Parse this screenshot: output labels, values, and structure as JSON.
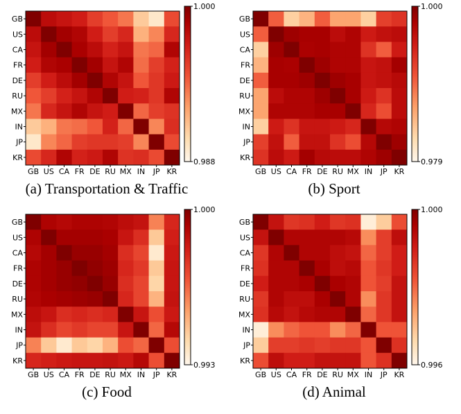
{
  "chart_data": [
    {
      "type": "heatmap",
      "caption": "(a) Transportation & Traffic",
      "labels": [
        "GB",
        "US",
        "CA",
        "FR",
        "DE",
        "RU",
        "MX",
        "IN",
        "JP",
        "KR"
      ],
      "colorbar": {
        "max": 1.0,
        "min": 0.988,
        "max_label": "1.000",
        "min_label": "0.988"
      },
      "values": [
        [
          1.0,
          0.998,
          0.9975,
          0.997,
          0.9955,
          0.9945,
          0.9935,
          0.9905,
          0.989,
          0.995
        ],
        [
          0.998,
          1.0,
          0.999,
          0.9985,
          0.997,
          0.9955,
          0.9965,
          0.9915,
          0.993,
          0.9965
        ],
        [
          0.9975,
          0.999,
          1.0,
          0.9988,
          0.998,
          0.9968,
          0.9975,
          0.9935,
          0.994,
          0.9985
        ],
        [
          0.997,
          0.9985,
          0.9988,
          1.0,
          0.999,
          0.9975,
          0.9985,
          0.9938,
          0.9955,
          0.9968
        ],
        [
          0.9955,
          0.997,
          0.998,
          0.999,
          1.0,
          0.9985,
          0.9975,
          0.9945,
          0.9958,
          0.9972
        ],
        [
          0.9945,
          0.9955,
          0.9968,
          0.9975,
          0.9985,
          1.0,
          0.997,
          0.9968,
          0.9958,
          0.9985
        ],
        [
          0.9935,
          0.9965,
          0.9975,
          0.9985,
          0.9975,
          0.997,
          1.0,
          0.994,
          0.9955,
          0.996
        ],
        [
          0.9905,
          0.9915,
          0.9935,
          0.9938,
          0.9945,
          0.9968,
          0.994,
          1.0,
          0.993,
          0.9962
        ],
        [
          0.989,
          0.993,
          0.994,
          0.9955,
          0.9958,
          0.9958,
          0.9955,
          0.993,
          1.0,
          0.995
        ],
        [
          0.995,
          0.9965,
          0.9985,
          0.9968,
          0.9972,
          0.9985,
          0.996,
          0.9962,
          0.995,
          1.0
        ]
      ]
    },
    {
      "type": "heatmap",
      "caption": "(b) Sport",
      "labels": [
        "GB",
        "US",
        "CA",
        "FR",
        "DE",
        "RU",
        "MX",
        "IN",
        "JP",
        "KR"
      ],
      "colorbar": {
        "max": 1.0,
        "min": 0.979,
        "max_label": "1.000",
        "min_label": "0.979"
      },
      "values": [
        [
          1.0,
          0.99,
          0.983,
          0.985,
          0.99,
          0.986,
          0.986,
          0.983,
          0.992,
          0.993
        ],
        [
          0.99,
          1.0,
          0.9985,
          0.998,
          0.998,
          0.9965,
          0.9975,
          0.995,
          0.996,
          0.9965
        ],
        [
          0.983,
          0.9985,
          1.0,
          0.9978,
          0.998,
          0.9975,
          0.9975,
          0.993,
          0.99,
          0.995
        ],
        [
          0.985,
          0.998,
          0.9978,
          1.0,
          0.9985,
          0.9975,
          0.9975,
          0.9955,
          0.996,
          0.9982
        ],
        [
          0.99,
          0.998,
          0.998,
          0.9985,
          1.0,
          0.9985,
          0.998,
          0.9955,
          0.996,
          0.9968
        ],
        [
          0.986,
          0.9965,
          0.9975,
          0.9975,
          0.9985,
          1.0,
          0.998,
          0.995,
          0.993,
          0.9965
        ],
        [
          0.986,
          0.9975,
          0.9975,
          0.9975,
          0.998,
          0.998,
          1.0,
          0.994,
          0.991,
          0.9965
        ],
        [
          0.983,
          0.995,
          0.993,
          0.9955,
          0.9955,
          0.995,
          0.994,
          1.0,
          0.997,
          0.9975
        ],
        [
          0.992,
          0.996,
          0.99,
          0.996,
          0.996,
          0.993,
          0.991,
          0.997,
          1.0,
          0.9985
        ],
        [
          0.993,
          0.9965,
          0.995,
          0.9982,
          0.9968,
          0.9965,
          0.9965,
          0.9975,
          0.9985,
          1.0
        ]
      ]
    },
    {
      "type": "heatmap",
      "caption": "(c) Food",
      "labels": [
        "GB",
        "US",
        "CA",
        "FR",
        "DE",
        "RU",
        "MX",
        "IN",
        "JP",
        "KR"
      ],
      "colorbar": {
        "max": 1.0,
        "min": 0.993,
        "max_label": "1.000",
        "min_label": "0.993"
      },
      "values": [
        [
          1.0,
          0.9992,
          0.999,
          0.9992,
          0.9992,
          0.9991,
          0.9988,
          0.9986,
          0.996,
          0.998
        ],
        [
          0.9992,
          1.0,
          0.9994,
          0.9994,
          0.9994,
          0.9993,
          0.9985,
          0.9978,
          0.9945,
          0.9982
        ],
        [
          0.999,
          0.9994,
          1.0,
          0.9996,
          0.9996,
          0.9994,
          0.9978,
          0.9972,
          0.9935,
          0.9984
        ],
        [
          0.9992,
          0.9994,
          0.9996,
          1.0,
          0.9997,
          0.9995,
          0.998,
          0.9975,
          0.9945,
          0.9985
        ],
        [
          0.9992,
          0.9994,
          0.9996,
          0.9997,
          1.0,
          0.9996,
          0.9978,
          0.9972,
          0.9942,
          0.9985
        ],
        [
          0.9991,
          0.9993,
          0.9994,
          0.9995,
          0.9996,
          1.0,
          0.998,
          0.9972,
          0.995,
          0.9986
        ],
        [
          0.9988,
          0.9985,
          0.9978,
          0.998,
          0.9978,
          0.998,
          1.0,
          0.9985,
          0.997,
          0.9984
        ],
        [
          0.9986,
          0.9978,
          0.9972,
          0.9975,
          0.9972,
          0.9972,
          0.9985,
          1.0,
          0.9965,
          0.999
        ],
        [
          0.996,
          0.9945,
          0.9935,
          0.9945,
          0.9942,
          0.995,
          0.997,
          0.9965,
          1.0,
          0.997
        ],
        [
          0.998,
          0.9982,
          0.9984,
          0.9985,
          0.9985,
          0.9986,
          0.9984,
          0.999,
          0.997,
          1.0
        ]
      ]
    },
    {
      "type": "heatmap",
      "caption": "(d) Animal",
      "labels": [
        "GB",
        "US",
        "CA",
        "FR",
        "DE",
        "RU",
        "MX",
        "IN",
        "JP",
        "KR"
      ],
      "colorbar": {
        "max": 1.0,
        "min": 0.996,
        "max_label": "1.000",
        "min_label": "0.996"
      },
      "values": [
        [
          1.0,
          0.9992,
          0.9986,
          0.9987,
          0.999,
          0.9986,
          0.9987,
          0.9962,
          0.9968,
          0.9983
        ],
        [
          0.9992,
          1.0,
          0.9995,
          0.9995,
          0.9995,
          0.9995,
          0.9994,
          0.9976,
          0.9985,
          0.9993
        ],
        [
          0.9986,
          0.9995,
          1.0,
          0.9995,
          0.9995,
          0.9993,
          0.9992,
          0.998,
          0.9985,
          0.999
        ],
        [
          0.9987,
          0.9995,
          0.9995,
          1.0,
          0.9996,
          0.9993,
          0.9994,
          0.9982,
          0.9986,
          0.999
        ],
        [
          0.999,
          0.9995,
          0.9995,
          0.9996,
          1.0,
          0.9996,
          0.9995,
          0.9982,
          0.9985,
          0.9992
        ],
        [
          0.9986,
          0.9995,
          0.9993,
          0.9993,
          0.9996,
          1.0,
          0.9995,
          0.9976,
          0.9986,
          0.9992
        ],
        [
          0.9987,
          0.9994,
          0.9992,
          0.9994,
          0.9995,
          0.9995,
          1.0,
          0.998,
          0.9986,
          0.9992
        ],
        [
          0.9962,
          0.9976,
          0.998,
          0.9982,
          0.9982,
          0.9976,
          0.998,
          1.0,
          0.9982,
          0.9982
        ],
        [
          0.9968,
          0.9985,
          0.9985,
          0.9986,
          0.9985,
          0.9986,
          0.9986,
          0.9982,
          1.0,
          0.9987
        ],
        [
          0.9983,
          0.9993,
          0.999,
          0.999,
          0.9992,
          0.9992,
          0.9992,
          0.9982,
          0.9987,
          1.0
        ]
      ]
    }
  ]
}
